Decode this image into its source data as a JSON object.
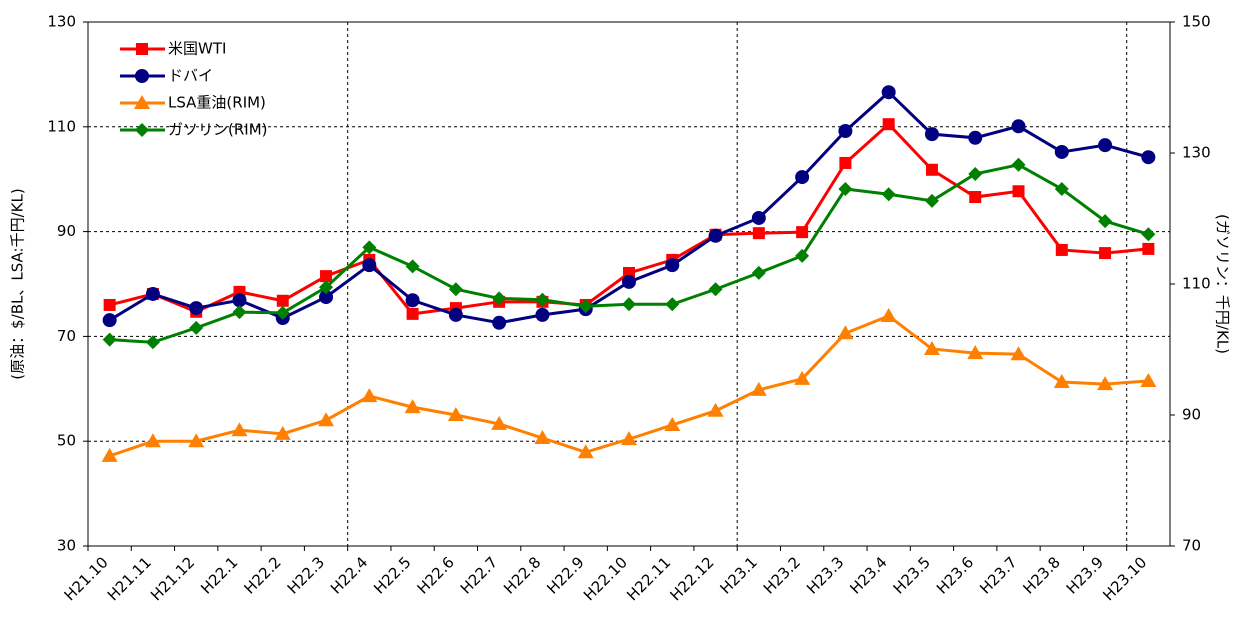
{
  "chart_data": {
    "type": "line",
    "categories": [
      "H21.10",
      "H21.11",
      "H21.12",
      "H22.1",
      "H22.2",
      "H22.3",
      "H22.4",
      "H22.5",
      "H22.6",
      "H22.7",
      "H22.8",
      "H22.9",
      "H22.10",
      "H22.11",
      "H22.12",
      "H23.1",
      "H23.2",
      "H23.3",
      "H23.4",
      "H23.5",
      "H23.6",
      "H23.7",
      "H23.8",
      "H23.9",
      "H23.10"
    ],
    "y_label": "(原油：$/BL、LSA:千円/KL)",
    "y2_label": "(ガソリン：千円/KL)",
    "ylim": [
      30,
      130
    ],
    "yticks": [
      30,
      50,
      70,
      90,
      110,
      130
    ],
    "y2lim": [
      70,
      150
    ],
    "y2ticks": [
      70,
      90,
      110,
      130,
      150
    ],
    "grid": true,
    "legend": "top-left",
    "series": [
      {
        "name": "米国WTI",
        "color": "#ff0000",
        "marker": "square",
        "values": [
          76.0,
          78.1,
          74.7,
          78.5,
          76.8,
          81.5,
          84.6,
          74.3,
          75.4,
          76.6,
          76.6,
          76.0,
          82.1,
          84.6,
          89.4,
          89.7,
          89.9,
          103.1,
          110.5,
          101.8,
          96.6,
          97.7,
          86.5,
          85.9,
          86.7
        ]
      },
      {
        "name": "ドバイ",
        "color": "#000080",
        "marker": "circle",
        "values": [
          73.1,
          78.1,
          75.4,
          76.9,
          73.5,
          77.5,
          83.6,
          76.9,
          74.1,
          72.6,
          74.1,
          75.2,
          80.4,
          83.6,
          89.2,
          92.6,
          100.4,
          109.2,
          116.6,
          108.6,
          107.9,
          110.1,
          105.2,
          106.5,
          104.2
        ]
      },
      {
        "name": "LSA重油(RIM)",
        "color": "#ff8000",
        "marker": "triangle",
        "values": [
          47.2,
          50.0,
          50.0,
          52.1,
          51.4,
          54.0,
          58.6,
          56.5,
          55.0,
          53.3,
          50.6,
          47.9,
          50.4,
          53.1,
          55.8,
          59.8,
          61.9,
          70.6,
          73.9,
          67.6,
          66.8,
          66.6,
          61.3,
          60.9,
          61.5
        ]
      },
      {
        "name": "ガソリン(RIM)",
        "color": "#008000",
        "marker": "diamond",
        "axis": "y2",
        "values": [
          101.5,
          101.1,
          103.3,
          105.7,
          105.6,
          109.5,
          115.6,
          112.7,
          109.2,
          107.8,
          107.6,
          106.6,
          106.9,
          106.9,
          109.2,
          111.7,
          114.3,
          124.5,
          123.7,
          122.7,
          126.8,
          128.2,
          124.5,
          119.6,
          117.6
        ]
      }
    ]
  }
}
